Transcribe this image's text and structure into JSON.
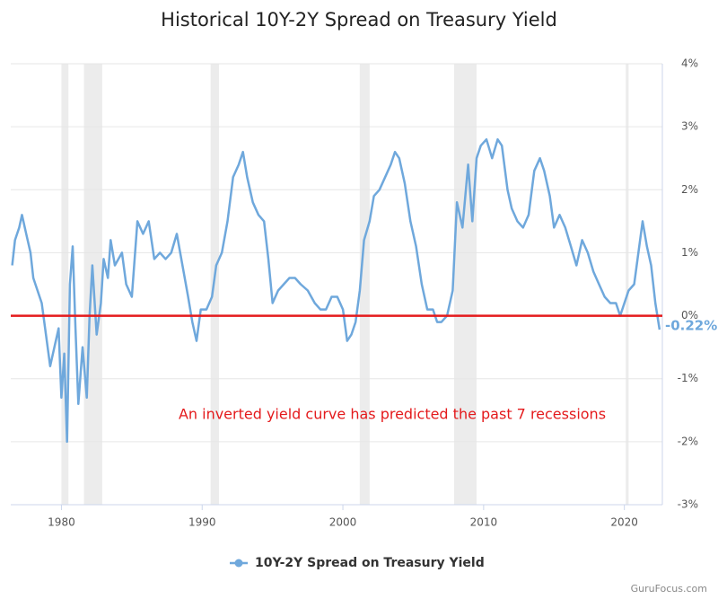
{
  "chart_data": {
    "type": "line",
    "title": "Historical 10Y-2Y Spread on Treasury Yield",
    "annotation": "An inverted yield curve has predicted the past 7 recessions",
    "source": "GuruFocus.com",
    "last_value_label": "-0.22%",
    "xlim": [
      1976.4,
      2022.7
    ],
    "ylim": [
      -3,
      4
    ],
    "xticks": [
      1980,
      1990,
      2000,
      2010,
      2020
    ],
    "yticks": [
      {
        "value": -3,
        "label": "-3%"
      },
      {
        "value": -2,
        "label": "-2%"
      },
      {
        "value": -1,
        "label": "-1%"
      },
      {
        "value": 0,
        "label": "0%"
      },
      {
        "value": 1,
        "label": "1%"
      },
      {
        "value": 2,
        "label": "2%"
      },
      {
        "value": 3,
        "label": "3%"
      },
      {
        "value": 4,
        "label": "4%"
      }
    ],
    "grid": true,
    "legend": "bottom",
    "reference_line": {
      "value": 0,
      "color": "#e41a1c"
    },
    "recessions": [
      [
        1980.0,
        1980.5
      ],
      [
        1981.6,
        1982.9
      ],
      [
        1990.6,
        1991.2
      ],
      [
        2001.2,
        2001.9
      ],
      [
        2007.9,
        2009.5
      ],
      [
        2020.1,
        2020.3
      ]
    ],
    "recession_color": "#ececec",
    "x": [
      1976.5,
      1976.7,
      1977.0,
      1977.2,
      1977.5,
      1977.8,
      1978.0,
      1978.3,
      1978.6,
      1978.9,
      1979.2,
      1979.5,
      1979.8,
      1980.0,
      1980.2,
      1980.4,
      1980.6,
      1980.8,
      1981.0,
      1981.2,
      1981.5,
      1981.8,
      1982.0,
      1982.2,
      1982.5,
      1982.8,
      1983.0,
      1983.3,
      1983.5,
      1983.8,
      1984.3,
      1984.6,
      1985.0,
      1985.4,
      1985.8,
      1986.2,
      1986.6,
      1987.0,
      1987.4,
      1987.8,
      1988.2,
      1988.6,
      1989.0,
      1989.3,
      1989.6,
      1989.9,
      1990.3,
      1990.7,
      1991.0,
      1991.4,
      1991.8,
      1992.2,
      1992.6,
      1992.9,
      1993.2,
      1993.6,
      1994.0,
      1994.4,
      1994.7,
      1995.0,
      1995.4,
      1995.8,
      1996.2,
      1996.6,
      1997.0,
      1997.5,
      1998.0,
      1998.4,
      1998.8,
      1999.2,
      1999.6,
      2000.0,
      2000.3,
      2000.6,
      2000.9,
      2001.2,
      2001.5,
      2001.9,
      2002.2,
      2002.6,
      2003.0,
      2003.4,
      2003.7,
      2004.0,
      2004.4,
      2004.8,
      2005.2,
      2005.6,
      2006.0,
      2006.4,
      2006.7,
      2007.0,
      2007.4,
      2007.8,
      2008.1,
      2008.5,
      2008.9,
      2009.2,
      2009.5,
      2009.8,
      2010.2,
      2010.6,
      2011.0,
      2011.3,
      2011.7,
      2012.0,
      2012.4,
      2012.8,
      2013.2,
      2013.6,
      2014.0,
      2014.3,
      2014.7,
      2015.0,
      2015.4,
      2015.8,
      2016.2,
      2016.6,
      2017.0,
      2017.4,
      2017.8,
      2018.2,
      2018.6,
      2019.0,
      2019.4,
      2019.7,
      2020.0,
      2020.3,
      2020.7,
      2021.0,
      2021.3,
      2021.6,
      2021.9,
      2022.2,
      2022.5
    ],
    "series": [
      {
        "name": "10Y-2Y Spread on Treasury Yield",
        "color": "#6fa8dc",
        "values": [
          0.8,
          1.2,
          1.4,
          1.6,
          1.3,
          1.0,
          0.6,
          0.4,
          0.2,
          -0.3,
          -0.8,
          -0.5,
          -0.2,
          -1.3,
          -0.6,
          -2.0,
          0.5,
          1.1,
          -0.2,
          -1.4,
          -0.5,
          -1.3,
          0.0,
          0.8,
          -0.3,
          0.2,
          0.9,
          0.6,
          1.2,
          0.8,
          1.0,
          0.5,
          0.3,
          1.5,
          1.3,
          1.5,
          0.9,
          1.0,
          0.9,
          1.0,
          1.3,
          0.8,
          0.3,
          -0.1,
          -0.4,
          0.1,
          0.1,
          0.3,
          0.8,
          1.0,
          1.5,
          2.2,
          2.4,
          2.6,
          2.2,
          1.8,
          1.6,
          1.5,
          0.9,
          0.2,
          0.4,
          0.5,
          0.6,
          0.6,
          0.5,
          0.4,
          0.2,
          0.1,
          0.1,
          0.3,
          0.3,
          0.1,
          -0.4,
          -0.3,
          -0.1,
          0.4,
          1.2,
          1.5,
          1.9,
          2.0,
          2.2,
          2.4,
          2.6,
          2.5,
          2.1,
          1.5,
          1.1,
          0.5,
          0.1,
          0.1,
          -0.1,
          -0.1,
          0.0,
          0.4,
          1.8,
          1.4,
          2.4,
          1.5,
          2.5,
          2.7,
          2.8,
          2.5,
          2.8,
          2.7,
          2.0,
          1.7,
          1.5,
          1.4,
          1.6,
          2.3,
          2.5,
          2.3,
          1.9,
          1.4,
          1.6,
          1.4,
          1.1,
          0.8,
          1.2,
          1.0,
          0.7,
          0.5,
          0.3,
          0.2,
          0.2,
          0.0,
          0.2,
          0.4,
          0.5,
          1.0,
          1.5,
          1.1,
          0.8,
          0.2,
          -0.22
        ]
      }
    ]
  }
}
